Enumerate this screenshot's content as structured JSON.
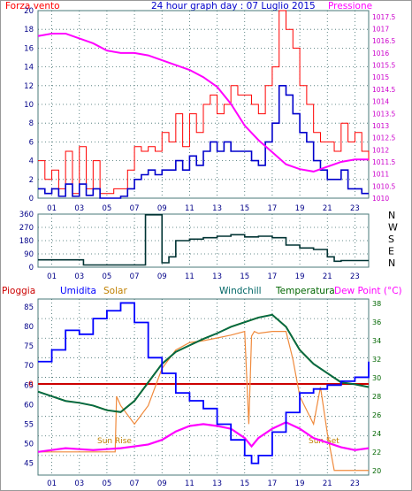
{
  "colors": {
    "wind": "#ff0000",
    "pressure": "#ff00ff",
    "wind_avg": "#0000cc",
    "direction": "#003333",
    "humidity": "#0000ff",
    "solar": "#f08a3c",
    "windchill": "#006666",
    "temperature": "#006600",
    "rain": "#cc0000",
    "dewpoint": "#ff00ff",
    "grid": "#3a6a6a",
    "axis_blue": "#000088"
  },
  "chart_data": [
    {
      "type": "line",
      "title": "24 hour graph day : 07 Luglio 2015",
      "ylabel_left": "Forza vento",
      "ylabel_right": "Pressione",
      "x_ticks": [
        "01",
        "03",
        "05",
        "07",
        "09",
        "11",
        "13",
        "15",
        "17",
        "19",
        "21",
        "23"
      ],
      "y_left_ticks": [
        "0",
        "2",
        "4",
        "6",
        "8",
        "10",
        "12",
        "14",
        "16",
        "18",
        "20"
      ],
      "y_right_ticks": [
        "1010",
        "1010.5",
        "1011",
        "1011.5",
        "1012",
        "1012.5",
        "1013",
        "1013.5",
        "1014",
        "1014.5",
        "1015",
        "1015.5",
        "1016",
        "1016.5",
        "1017",
        "1017.5"
      ],
      "ylim_left": [
        0,
        20
      ],
      "ylim_right": [
        1010,
        1017.75
      ],
      "xlim": [
        0,
        24
      ],
      "series": [
        {
          "key": "gust",
          "values_x": [
            0,
            0.5,
            1,
            1.5,
            2,
            2.5,
            3,
            3.5,
            4,
            4.5,
            5,
            5.5,
            6,
            6.5,
            7,
            7.5,
            8,
            8.5,
            9,
            9.5,
            10,
            10.5,
            11,
            11.5,
            12,
            12.5,
            13,
            13.5,
            14,
            14.5,
            15,
            15.5,
            16,
            16.5,
            17,
            17.5,
            18,
            18.5,
            19,
            19.5,
            20,
            20.5,
            21,
            21.5,
            22,
            22.5,
            23,
            23.5,
            24
          ],
          "values": [
            4,
            2,
            3,
            1,
            5,
            0.5,
            5.5,
            1,
            4,
            0.5,
            0.5,
            1,
            1,
            3,
            5.5,
            5,
            5.5,
            5,
            7,
            6,
            9,
            5.5,
            9,
            7,
            10,
            11,
            9,
            10,
            12,
            11,
            11,
            10,
            9,
            12,
            14,
            20,
            18,
            16,
            12,
            10,
            7,
            6,
            6,
            5,
            8,
            6,
            7,
            5,
            4
          ]
        },
        {
          "key": "avg",
          "values_x": [
            0,
            0.5,
            1,
            1.5,
            2,
            2.5,
            3,
            3.5,
            4,
            4.5,
            5,
            5.5,
            6,
            6.5,
            7,
            7.5,
            8,
            8.5,
            9,
            9.5,
            10,
            10.5,
            11,
            11.5,
            12,
            12.5,
            13,
            13.5,
            14,
            14.5,
            15,
            15.5,
            16,
            16.5,
            17,
            17.5,
            18,
            18.5,
            19,
            19.5,
            20,
            20.5,
            21,
            21.5,
            22,
            22.5,
            23,
            23.5,
            24
          ],
          "values": [
            1,
            0.5,
            1,
            0.2,
            1.5,
            0.2,
            1.5,
            0.3,
            1,
            0,
            0,
            0,
            0.2,
            1,
            2,
            2.5,
            3,
            2.5,
            3,
            3,
            4,
            3,
            4.5,
            3.5,
            5,
            6,
            5,
            6,
            5,
            5,
            5,
            4,
            3.5,
            6,
            8,
            12,
            11,
            9,
            7,
            6,
            4,
            3,
            2,
            2,
            3,
            1,
            1,
            0.5,
            0.5
          ]
        },
        {
          "key": "pressure",
          "values_x": [
            0,
            1,
            2,
            3,
            4,
            5,
            6,
            7,
            8,
            9,
            10,
            11,
            12,
            13,
            14,
            15,
            16,
            17,
            18,
            19,
            20,
            21,
            22,
            23,
            24
          ],
          "values": [
            1016.7,
            1016.8,
            1016.8,
            1016.6,
            1016.4,
            1016.1,
            1016.0,
            1016.0,
            1015.9,
            1015.7,
            1015.5,
            1015.3,
            1015.0,
            1014.6,
            1013.9,
            1013.0,
            1012.4,
            1011.9,
            1011.4,
            1011.2,
            1011.1,
            1011.3,
            1011.5,
            1011.6,
            1011.6
          ]
        }
      ]
    },
    {
      "type": "line",
      "ylabel_right": [
        "N",
        "W",
        "S",
        "E",
        "N"
      ],
      "y_ticks": [
        "0",
        "90",
        "180",
        "270",
        "360"
      ],
      "ylim": [
        0,
        360
      ],
      "xlim": [
        0,
        24
      ],
      "series": [
        {
          "key": "direction",
          "values_x": [
            0,
            1,
            2,
            3,
            3.3,
            4,
            5,
            6,
            7,
            7.7,
            7.8,
            8.9,
            9,
            9.5,
            10,
            11,
            12,
            13,
            14,
            15,
            16,
            17,
            18,
            19,
            20,
            20.5,
            21,
            21.5,
            22,
            23,
            24
          ],
          "values": [
            50,
            50,
            50,
            50,
            15,
            15,
            15,
            15,
            15,
            15,
            355,
            355,
            30,
            70,
            180,
            190,
            200,
            210,
            220,
            205,
            210,
            200,
            150,
            130,
            120,
            120,
            70,
            40,
            45,
            45,
            45
          ]
        }
      ]
    },
    {
      "type": "line",
      "legend": [
        "Pioggia",
        "Umidita",
        "Solar",
        "Windchill",
        "Temperatura",
        "Dew Point (°C)"
      ],
      "y_left_ticks": [
        "45",
        "50",
        "55",
        "60",
        "65",
        "70",
        "75",
        "80",
        "85"
      ],
      "y_right_ticks": [
        "20",
        "22",
        "24",
        "26",
        "28",
        "30",
        "32",
        "34",
        "36",
        "38"
      ],
      "rain_label": "0",
      "ylim_left": [
        42,
        87
      ],
      "ylim_right": [
        19.5,
        38.5
      ],
      "xlim": [
        0,
        24
      ],
      "annotations": [
        {
          "text": "Sun Rise",
          "x": 6.2
        },
        {
          "text": "Sun Set",
          "x": 20.8
        }
      ],
      "series": [
        {
          "key": "humidity",
          "values_x": [
            0,
            1,
            2,
            3,
            4,
            5,
            6,
            6.5,
            7,
            8,
            9,
            10,
            11,
            12,
            13,
            14,
            15,
            15.5,
            16,
            17,
            18,
            19,
            20,
            21,
            22,
            23,
            24
          ],
          "values": [
            71,
            74,
            79,
            78,
            82,
            84,
            86,
            86,
            81,
            72,
            68,
            63,
            61,
            59,
            55,
            51,
            47,
            45,
            47,
            53,
            58,
            63,
            64,
            65,
            66,
            67,
            71
          ]
        },
        {
          "key": "solar",
          "values_x": [
            0,
            5.6,
            5.7,
            6,
            7,
            8,
            9,
            10,
            11,
            12,
            13,
            14,
            15,
            15.3,
            15.5,
            15.7,
            16,
            17,
            18,
            18.5,
            19,
            20,
            20.5,
            21,
            21.5,
            22,
            23,
            24
          ],
          "values": [
            22,
            22,
            28,
            27,
            25,
            27,
            31,
            33,
            33.8,
            34,
            34.3,
            34.6,
            35,
            25,
            34.5,
            35,
            34.8,
            35,
            35,
            32,
            28,
            25,
            29,
            24,
            20,
            20,
            20,
            20
          ]
        },
        {
          "key": "windchill",
          "values_x": [
            0,
            1,
            2,
            3,
            4,
            5,
            6,
            7,
            8,
            9,
            10,
            11,
            12,
            13,
            14,
            15,
            16,
            17,
            18,
            19,
            20,
            21,
            22,
            23,
            24
          ],
          "values": [
            28.5,
            28,
            27.5,
            27.3,
            27,
            26.5,
            26.3,
            27.5,
            29.5,
            31.5,
            32.8,
            33.5,
            34.2,
            34.8,
            35.5,
            36,
            36.5,
            36.8,
            35.5,
            33,
            31.5,
            30.5,
            29.5,
            29.3,
            29
          ]
        },
        {
          "key": "temperature",
          "values_x": [
            0,
            1,
            2,
            3,
            4,
            5,
            6,
            7,
            8,
            9,
            10,
            11,
            12,
            13,
            14,
            15,
            16,
            17,
            18,
            19,
            20,
            21,
            22,
            23,
            24
          ],
          "values": [
            28.5,
            28,
            27.5,
            27.3,
            27,
            26.5,
            26.3,
            27.5,
            29.5,
            31.5,
            32.8,
            33.5,
            34.2,
            34.8,
            35.5,
            36,
            36.5,
            36.8,
            35.5,
            33,
            31.5,
            30.5,
            29.5,
            29.3,
            29
          ]
        },
        {
          "key": "dewpoint",
          "values_x": [
            0,
            1,
            2,
            3,
            4,
            5,
            6,
            7,
            8,
            9,
            10,
            11,
            12,
            13,
            14,
            15,
            15.5,
            16,
            17,
            18,
            19,
            20,
            21,
            22,
            23,
            24
          ],
          "values": [
            22,
            22.2,
            22.4,
            22.3,
            22.2,
            22.3,
            22.4,
            22.6,
            22.8,
            23.3,
            24.2,
            24.8,
            25,
            24.8,
            24.5,
            23.5,
            22.6,
            23.5,
            24.5,
            25.2,
            24.5,
            23.5,
            23,
            22.5,
            22.2,
            22.4
          ]
        }
      ]
    }
  ]
}
